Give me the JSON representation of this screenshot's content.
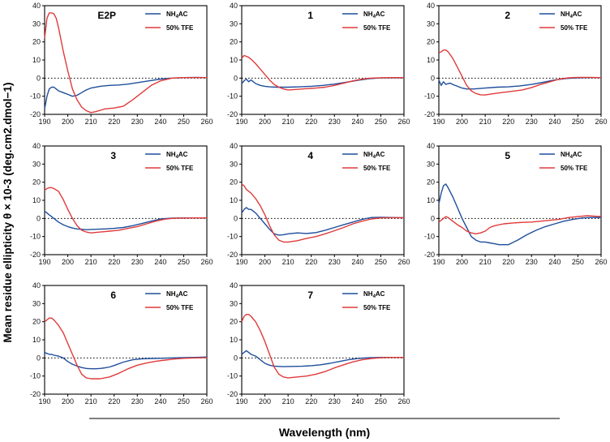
{
  "chart_data": {
    "type": "line",
    "ylabel": "Mean residue ellipticity θ × 10-3 (deg.cm2.dmol−1)",
    "xlabel": "Wavelength (nm)",
    "xlim": [
      190,
      260
    ],
    "ylim": [
      -20,
      40
    ],
    "xticks": [
      "190",
      "200",
      "210",
      "220",
      "230",
      "240",
      "250",
      "260"
    ],
    "yticks": [
      "40",
      "30",
      "20",
      "10",
      "0",
      "-10",
      "-20"
    ],
    "legend": [
      {
        "name": "NH",
        "sub": "4",
        "tail": "AC",
        "color": "#1f4e9c"
      },
      {
        "name": "50% TFE",
        "sub": "",
        "tail": "",
        "color": "#e03a3a"
      }
    ],
    "panels": [
      {
        "title": "E2P",
        "series": [
          {
            "name": "NH4AC",
            "x": [
              190,
              191,
              192,
              193,
              194,
              195,
              196,
              198,
              200,
              202,
              204,
              206,
              208,
              210,
              214,
              218,
              222,
              226,
              230,
              235,
              240,
              245,
              250,
              255,
              260
            ],
            "y": [
              -17,
              -10,
              -6,
              -5,
              -5,
              -6,
              -7,
              -8,
              -9,
              -10,
              -9.5,
              -8,
              -6.5,
              -5.5,
              -4.5,
              -4,
              -3.8,
              -3.3,
              -2.5,
              -1.5,
              -0.5,
              0,
              0.3,
              0.4,
              0.3
            ]
          },
          {
            "name": "50% TFE",
            "x": [
              190,
              191,
              192,
              193,
              194,
              195,
              196,
              198,
              200,
              202,
              204,
              206,
              208,
              210,
              212,
              216,
              220,
              224,
              228,
              232,
              236,
              240,
              245,
              250,
              255,
              260
            ],
            "y": [
              22,
              33,
              36,
              36,
              35.5,
              33,
              28,
              15,
              4,
              -6,
              -12,
              -16,
              -18,
              -19,
              -18.5,
              -17,
              -16.5,
              -15.5,
              -12,
              -8,
              -4,
              -1.5,
              0,
              0.3,
              0.3,
              0.3
            ]
          }
        ]
      },
      {
        "title": "1",
        "series": [
          {
            "name": "NH4AC",
            "x": [
              190,
              191,
              192,
              193,
              194,
              195,
              196,
              198,
              200,
              202,
              205,
              210,
              215,
              220,
              225,
              230,
              235,
              240,
              245,
              250,
              255,
              260
            ],
            "y": [
              -3,
              -1.5,
              -0.5,
              -2,
              -1,
              -2,
              -3,
              -4,
              -4.5,
              -4.8,
              -5,
              -5,
              -4.8,
              -4.5,
              -4,
              -3.3,
              -2.3,
              -1.2,
              -0.3,
              0.1,
              0.2,
              0.2
            ]
          },
          {
            "name": "50% TFE",
            "x": [
              190,
              191,
              192,
              193,
              194,
              196,
              198,
              200,
              202,
              204,
              206,
              208,
              210,
              214,
              218,
              222,
              226,
              230,
              234,
              238,
              242,
              246,
              250,
              255,
              260
            ],
            "y": [
              11,
              12.5,
              12,
              11.5,
              10.5,
              8,
              5,
              2,
              -1,
              -3.5,
              -5,
              -6,
              -6.5,
              -6.2,
              -5.8,
              -5.5,
              -5,
              -4,
              -2.8,
              -1.5,
              -0.5,
              0,
              0.2,
              0.3,
              0.3
            ]
          }
        ]
      },
      {
        "title": "2",
        "series": [
          {
            "name": "NH4AC",
            "x": [
              190,
              191,
              192,
              193,
              194,
              195,
              196,
              198,
              200,
              202,
              205,
              210,
              215,
              220,
              225,
              230,
              235,
              240,
              245,
              250,
              255,
              260
            ],
            "y": [
              -1,
              -4,
              -2,
              -3.5,
              -3,
              -2.8,
              -3.5,
              -4.5,
              -5.5,
              -6,
              -6,
              -5.5,
              -5,
              -4.8,
              -4.3,
              -3.5,
              -2.3,
              -1,
              -0.2,
              0.2,
              0.3,
              0.3
            ]
          },
          {
            "name": "50% TFE",
            "x": [
              190,
              191,
              192,
              193,
              194,
              196,
              198,
              200,
              202,
              204,
              206,
              208,
              210,
              214,
              218,
              222,
              226,
              230,
              234,
              238,
              242,
              246,
              250,
              255,
              260
            ],
            "y": [
              14,
              14.5,
              15.5,
              15.5,
              14.5,
              11,
              6,
              1,
              -4,
              -7,
              -8.5,
              -9.2,
              -9.3,
              -8.5,
              -7.8,
              -7.2,
              -6.5,
              -5.2,
              -3.5,
              -2,
              -0.5,
              0.2,
              0.4,
              0.4,
              0.3
            ]
          }
        ]
      },
      {
        "title": "3",
        "series": [
          {
            "name": "NH4AC",
            "x": [
              190,
              191,
              192,
              193,
              194,
              196,
              198,
              200,
              202,
              204,
              206,
              208,
              212,
              216,
              220,
              224,
              228,
              232,
              236,
              240,
              245,
              250,
              255,
              260
            ],
            "y": [
              4,
              3,
              2,
              1,
              0,
              -2,
              -3.5,
              -4.5,
              -5.3,
              -5.8,
              -6,
              -6.2,
              -6,
              -5.8,
              -5.5,
              -5,
              -4,
              -2.8,
              -1.5,
              -0.3,
              0.2,
              0.3,
              0.3,
              0.3
            ]
          },
          {
            "name": "50% TFE",
            "x": [
              190,
              191,
              192,
              193,
              194,
              196,
              198,
              200,
              202,
              204,
              206,
              208,
              210,
              214,
              218,
              222,
              226,
              230,
              234,
              238,
              242,
              246,
              250,
              255,
              260
            ],
            "y": [
              15.5,
              16.5,
              17,
              17,
              16.5,
              15,
              10.5,
              5,
              0,
              -4,
              -6.5,
              -7.5,
              -8,
              -7.5,
              -7,
              -6.5,
              -5.5,
              -4.5,
              -3,
              -1.5,
              -0.4,
              0.1,
              0.2,
              0.3,
              0.3
            ]
          }
        ]
      },
      {
        "title": "4",
        "series": [
          {
            "name": "NH4AC",
            "x": [
              190,
              191,
              192,
              193,
              194,
              196,
              198,
              200,
              202,
              204,
              206,
              208,
              210,
              214,
              218,
              222,
              226,
              230,
              234,
              238,
              242,
              246,
              250,
              255,
              260
            ],
            "y": [
              3,
              5,
              6,
              5,
              5,
              3,
              0,
              -3,
              -6,
              -8.5,
              -9.2,
              -9,
              -8.5,
              -8,
              -8.3,
              -7.8,
              -6.5,
              -5,
              -3.5,
              -2,
              -0.5,
              0.5,
              0.6,
              0.5,
              0.4
            ]
          },
          {
            "name": "50% TFE",
            "x": [
              190,
              191,
              192,
              193,
              194,
              196,
              198,
              200,
              202,
              204,
              206,
              208,
              210,
              214,
              218,
              222,
              226,
              230,
              234,
              238,
              242,
              246,
              250,
              255,
              260
            ],
            "y": [
              19,
              18,
              16,
              15,
              14,
              11,
              7,
              2,
              -4,
              -9,
              -12,
              -13,
              -13,
              -12.3,
              -11,
              -10,
              -8.5,
              -6.8,
              -5,
              -3,
              -1.5,
              -0.3,
              0.3,
              0.4,
              0.4
            ]
          }
        ]
      },
      {
        "title": "5",
        "series": [
          {
            "name": "NH4AC",
            "x": [
              190,
              191,
              192,
              193,
              194,
              196,
              198,
              200,
              202,
              204,
              206,
              208,
              210,
              212,
              214,
              216,
              218,
              220,
              224,
              228,
              232,
              236,
              240,
              244,
              248,
              252,
              256,
              260
            ],
            "y": [
              8,
              14,
              18,
              19,
              17,
              12,
              6,
              0,
              -5,
              -10,
              -12,
              -13,
              -13,
              -13.5,
              -14,
              -14.5,
              -14.5,
              -14.5,
              -12,
              -9,
              -6.5,
              -4.5,
              -3,
              -1.5,
              -0.5,
              0.3,
              0.5,
              0.5
            ]
          },
          {
            "name": "50% TFE",
            "x": [
              190,
              191,
              192,
              193,
              194,
              196,
              198,
              200,
              202,
              204,
              206,
              208,
              210,
              212,
              214,
              218,
              222,
              226,
              230,
              234,
              238,
              242,
              246,
              250,
              254,
              258,
              260
            ],
            "y": [
              -2,
              -1,
              0,
              1,
              0.5,
              -1.5,
              -3.5,
              -5,
              -7,
              -8,
              -8.5,
              -8,
              -7,
              -5,
              -4,
              -3,
              -2.5,
              -2.2,
              -2,
              -1.5,
              -1,
              -0.5,
              0.5,
              1,
              1.5,
              1.2,
              1.1
            ]
          }
        ]
      },
      {
        "title": "6",
        "series": [
          {
            "name": "NH4AC",
            "x": [
              190,
              191,
              192,
              193,
              194,
              196,
              198,
              200,
              202,
              204,
              206,
              208,
              210,
              212,
              214,
              216,
              218,
              220,
              224,
              228,
              232,
              236,
              240,
              245,
              250,
              255,
              260
            ],
            "y": [
              3,
              2.5,
              2,
              2,
              1.5,
              1,
              0,
              -2,
              -3.5,
              -4.5,
              -5.3,
              -5.8,
              -6,
              -6,
              -5.8,
              -5.5,
              -5,
              -4.2,
              -2.3,
              -1,
              -0.5,
              -0.3,
              -0.2,
              0,
              0.2,
              0.3,
              0.5
            ]
          },
          {
            "name": "50% TFE",
            "x": [
              190,
              191,
              192,
              193,
              194,
              196,
              198,
              200,
              202,
              204,
              206,
              208,
              210,
              214,
              218,
              222,
              226,
              230,
              234,
              238,
              242,
              246,
              250,
              255,
              260
            ],
            "y": [
              20,
              21,
              22,
              22,
              21,
              18,
              14,
              8,
              2,
              -4,
              -9,
              -11,
              -11.5,
              -11.5,
              -10.5,
              -8.5,
              -6,
              -4,
              -2.8,
              -1.8,
              -1.2,
              -0.6,
              -0.2,
              0,
              0.2
            ]
          }
        ]
      },
      {
        "title": "7",
        "series": [
          {
            "name": "NH4AC",
            "x": [
              190,
              191,
              192,
              193,
              194,
              196,
              198,
              200,
              202,
              204,
              206,
              208,
              212,
              216,
              220,
              224,
              228,
              232,
              236,
              240,
              245,
              250,
              255,
              260
            ],
            "y": [
              2,
              3,
              4,
              3,
              2,
              1,
              -1,
              -3,
              -4,
              -4.5,
              -4.7,
              -4.8,
              -4.7,
              -4.6,
              -4.3,
              -3.8,
              -3,
              -2,
              -1,
              -0.3,
              0.1,
              0.3,
              0.3,
              0.3
            ]
          },
          {
            "name": "50% TFE",
            "x": [
              190,
              191,
              192,
              193,
              194,
              196,
              198,
              200,
              202,
              204,
              206,
              208,
              210,
              214,
              218,
              222,
              226,
              230,
              234,
              238,
              242,
              246,
              250,
              255,
              260
            ],
            "y": [
              20,
              23,
              24,
              24,
              23,
              20,
              15,
              9,
              2,
              -5,
              -9,
              -10.5,
              -11,
              -10.5,
              -10,
              -9,
              -7.5,
              -5.5,
              -3.8,
              -2.2,
              -1,
              -0.3,
              0.1,
              0.3,
              0.3
            ]
          }
        ]
      }
    ]
  }
}
